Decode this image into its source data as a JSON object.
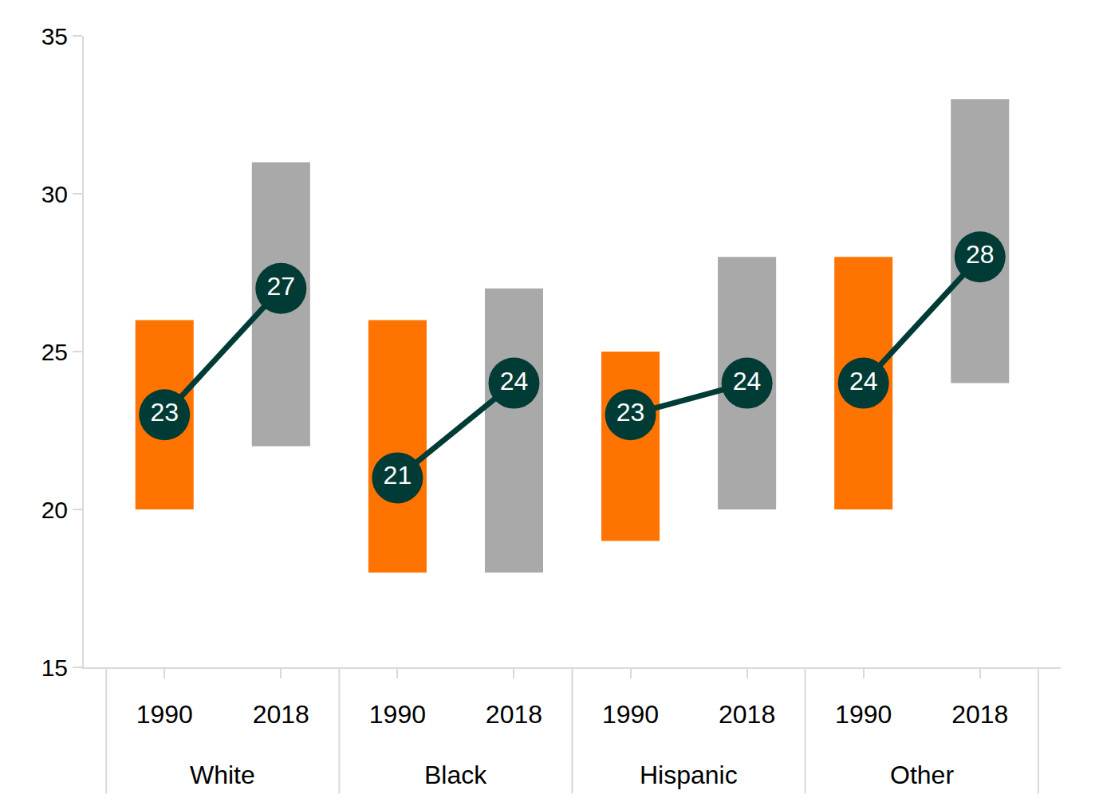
{
  "chart_data": {
    "type": "range_bar",
    "groups": [
      "White",
      "Black",
      "Hispanic",
      "Other"
    ],
    "categories": [
      "1990",
      "2018",
      "1990",
      "2018",
      "1990",
      "2018",
      "1990",
      "2018"
    ],
    "ylim": [
      15,
      35
    ],
    "yticks": [
      15,
      20,
      25,
      30,
      35
    ],
    "grid": false,
    "series": [
      {
        "type": "bar",
        "colors": [
          "#ff7300",
          "#a9a9a9",
          "#ff7300",
          "#a9a9a9",
          "#ff7300",
          "#a9a9a9",
          "#ff7300",
          "#a9a9a9"
        ],
        "low": [
          20,
          22,
          18,
          18,
          19,
          20,
          20,
          24
        ],
        "high": [
          26,
          31,
          26,
          27,
          25,
          28,
          28,
          33
        ]
      },
      {
        "type": "line",
        "marker": "circle",
        "color": "#003b35",
        "data_labels": true,
        "values": [
          23,
          27,
          21,
          24,
          23,
          24,
          24,
          28
        ]
      }
    ]
  }
}
